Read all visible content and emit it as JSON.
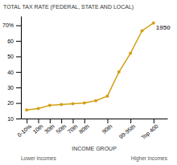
{
  "chart_data": {
    "type": "line",
    "title": "TOTAL TAX RATE (FEDERAL, STATE AND LOCAL)",
    "xlabel": "INCOME GROUP",
    "x": [
      0,
      1,
      2,
      3,
      4,
      5,
      6,
      7,
      8,
      9,
      10,
      11
    ],
    "values": [
      15.5,
      16.5,
      18.5,
      19.0,
      19.5,
      20.0,
      21.5,
      24.5,
      40.0,
      52.0,
      66.5,
      71.5
    ],
    "color": "#D4A017",
    "marker": "circle",
    "xlim": [
      -0.5,
      12.2
    ],
    "xticks": [
      {
        "value": 0,
        "label": "0-10%"
      },
      {
        "value": 1,
        "label": "10th"
      },
      {
        "value": 2,
        "label": "30th"
      },
      {
        "value": 3,
        "label": "50th"
      },
      {
        "value": 4,
        "label": "70th"
      },
      {
        "value": 5,
        "label": "80th"
      },
      {
        "value": 7,
        "label": "90th"
      },
      {
        "value": 9,
        "label": "99-95th"
      },
      {
        "value": 11,
        "label": "Top 400"
      }
    ],
    "ylim": [
      10,
      76
    ],
    "yticks": [
      10,
      20,
      30,
      40,
      50,
      60,
      {
        "value": 70,
        "label": "70%"
      }
    ],
    "grid": false,
    "annotations": [
      "1950",
      "Lower incomes",
      "Higher incomes"
    ]
  }
}
